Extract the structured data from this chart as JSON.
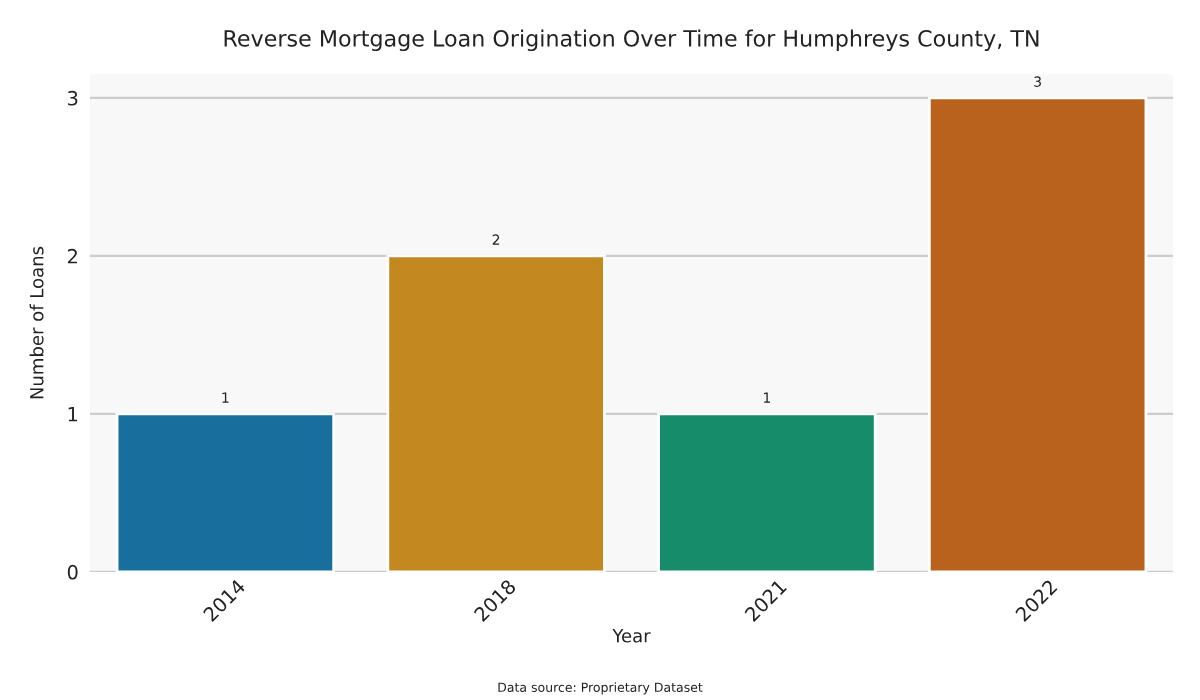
{
  "chart_data": {
    "type": "bar",
    "title": "Reverse Mortgage Loan Origination Over Time for Humphreys County, TN",
    "xlabel": "Year",
    "ylabel": "Number of Loans",
    "categories": [
      "2014",
      "2018",
      "2021",
      "2022"
    ],
    "values": [
      1,
      2,
      1,
      3
    ],
    "colors": [
      "#186e9c",
      "#c38820",
      "#178c6b",
      "#b9621d"
    ],
    "ylim": [
      0,
      3.15
    ],
    "yticks": [
      0,
      1,
      2,
      3
    ],
    "grid": "y",
    "data_labels": true,
    "annotations": [
      "Data source: Proprietary Dataset"
    ]
  }
}
